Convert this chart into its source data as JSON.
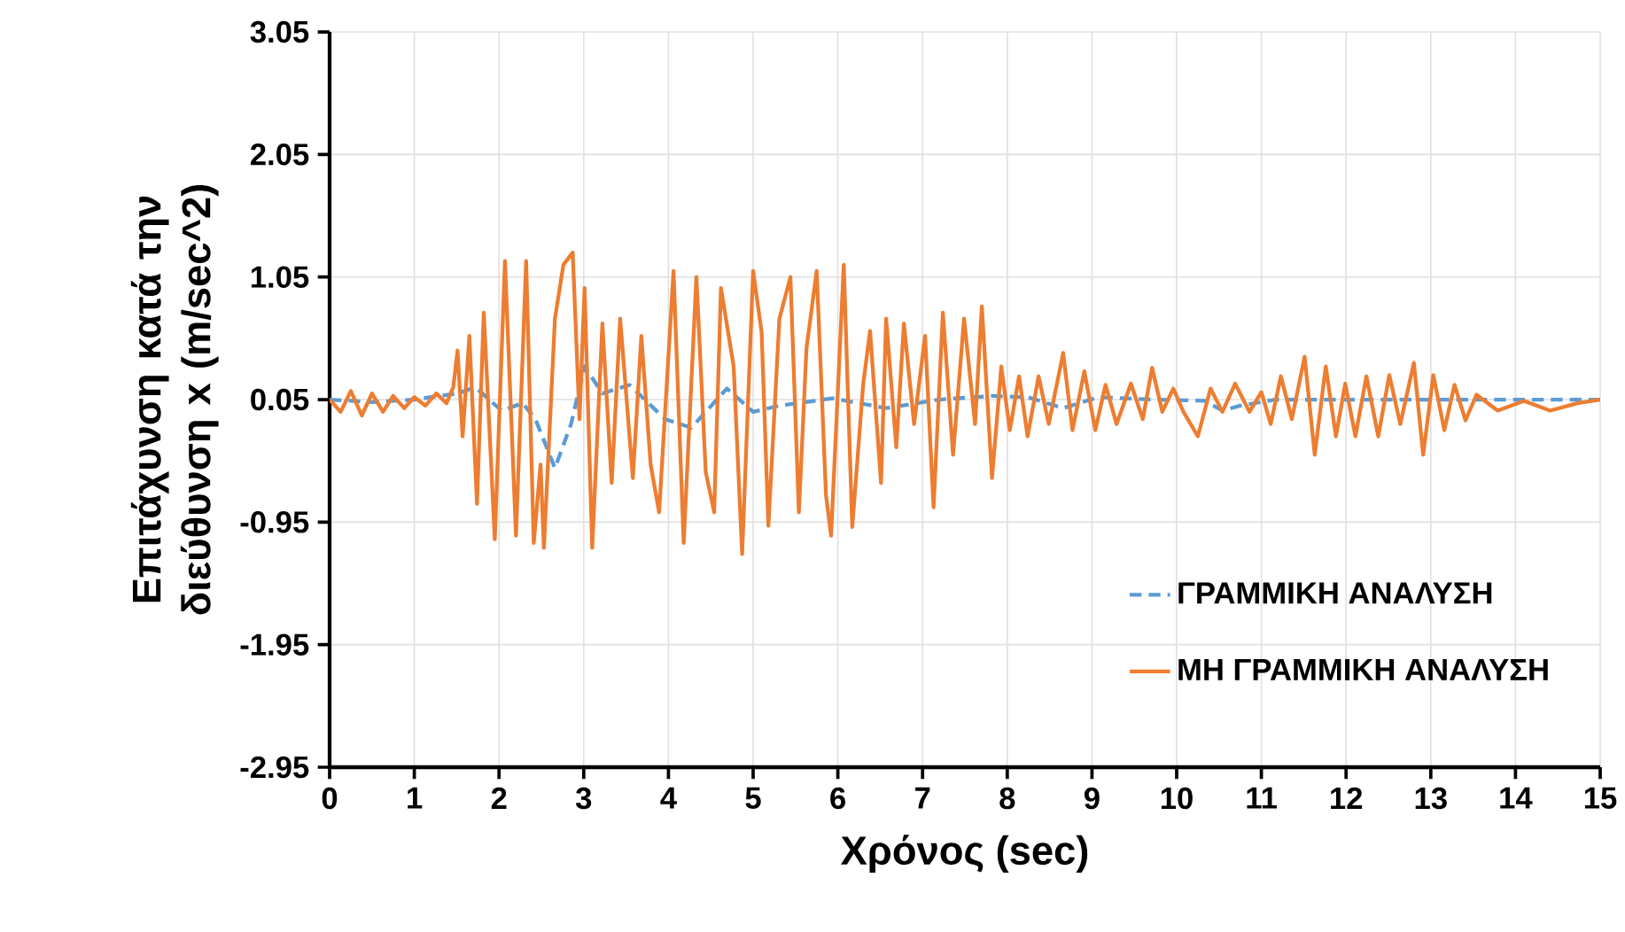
{
  "chart_data": {
    "type": "line",
    "xlabel": "Χρόνος (sec)",
    "ylabel": "Επιτάχυνση κατά την διεύθυνση x (m/sec^2)",
    "xlim": [
      0,
      15
    ],
    "xticks": [
      0,
      1,
      2,
      3,
      4,
      5,
      6,
      7,
      8,
      9,
      10,
      11,
      12,
      13,
      14,
      15
    ],
    "ylim": [
      -2.95,
      3.05
    ],
    "yticks": [
      -2.95,
      -1.95,
      -0.95,
      0.05,
      1.05,
      2.05,
      3.05
    ],
    "grid": true,
    "legend": "bottom right",
    "series": [
      {
        "name": "ΓΡΑΜΜΙΚΗ ΑΝΑΛΥΣΗ",
        "color": "#5b9bd5",
        "line_style": "dashed",
        "x": [
          0,
          0.5,
          1.0,
          1.51,
          1.72,
          2.03,
          2.28,
          2.43,
          2.66,
          2.85,
          3.01,
          3.22,
          3.54,
          3.96,
          4.27,
          4.69,
          5.0,
          5.31,
          5.94,
          6.57,
          7.2,
          7.82,
          8.24,
          8.66,
          9.08,
          9.71,
          10.33,
          10.54,
          10.75,
          11.17,
          12,
          13,
          14,
          15
        ],
        "values": [
          0.05,
          0.03,
          0.05,
          0.1,
          0.15,
          -0.04,
          0.02,
          -0.11,
          -0.51,
          -0.15,
          0.32,
          0.1,
          0.17,
          -0.11,
          -0.18,
          0.14,
          -0.05,
          0.0,
          0.06,
          -0.02,
          0.05,
          0.08,
          0.07,
          -0.02,
          0.07,
          0.05,
          0.04,
          -0.04,
          0.0,
          0.05,
          0.05,
          0.05,
          0.05,
          0.05
        ]
      },
      {
        "name": "ΜΗ ΓΡΑΜΜΙΚΗ ΑΝΑΛΥΣΗ",
        "color": "#ed7d31",
        "line_style": "solid",
        "x": [
          0,
          0.13,
          0.25,
          0.38,
          0.5,
          0.63,
          0.75,
          0.88,
          1.0,
          1.13,
          1.26,
          1.38,
          1.46,
          1.51,
          1.57,
          1.65,
          1.74,
          1.82,
          1.95,
          2.07,
          2.2,
          2.32,
          2.41,
          2.49,
          2.53,
          2.66,
          2.76,
          2.87,
          2.95,
          3.01,
          3.1,
          3.22,
          3.33,
          3.43,
          3.58,
          3.68,
          3.79,
          3.89,
          4.06,
          4.18,
          4.33,
          4.44,
          4.54,
          4.62,
          4.77,
          4.87,
          5.0,
          5.1,
          5.18,
          5.31,
          5.44,
          5.54,
          5.63,
          5.75,
          5.86,
          5.92,
          6.07,
          6.17,
          6.3,
          6.38,
          6.51,
          6.57,
          6.69,
          6.78,
          6.9,
          7.03,
          7.13,
          7.24,
          7.36,
          7.49,
          7.62,
          7.7,
          7.82,
          7.93,
          8.03,
          8.14,
          8.24,
          8.37,
          8.49,
          8.66,
          8.77,
          8.91,
          9.04,
          9.16,
          9.29,
          9.46,
          9.6,
          9.71,
          9.83,
          9.96,
          10.08,
          10.25,
          10.4,
          10.54,
          10.69,
          10.86,
          11.0,
          11.11,
          11.23,
          11.36,
          11.51,
          11.63,
          11.76,
          11.88,
          11.99,
          12.11,
          12.24,
          12.38,
          12.51,
          12.64,
          12.8,
          12.91,
          13.03,
          13.16,
          13.28,
          13.41,
          13.54,
          13.79,
          14.1,
          14.41,
          14.73,
          15
        ],
        "values": [
          0.05,
          -0.05,
          0.12,
          -0.08,
          0.1,
          -0.05,
          0.08,
          -0.02,
          0.07,
          0.0,
          0.1,
          0.02,
          0.15,
          0.45,
          -0.25,
          0.57,
          -0.8,
          0.76,
          -1.09,
          1.18,
          -1.06,
          1.18,
          -1.12,
          -0.48,
          -1.16,
          0.71,
          1.15,
          1.25,
          -0.11,
          0.96,
          -1.16,
          0.67,
          -0.63,
          0.71,
          -0.59,
          0.57,
          -0.48,
          -0.87,
          1.1,
          -1.12,
          1.05,
          -0.54,
          -0.87,
          0.96,
          0.32,
          -1.21,
          1.1,
          0.6,
          -0.98,
          0.71,
          1.05,
          -0.87,
          0.47,
          1.1,
          -0.73,
          -1.06,
          1.15,
          -0.99,
          0.18,
          0.61,
          -0.63,
          0.71,
          -0.34,
          0.67,
          -0.15,
          0.57,
          -0.83,
          0.76,
          -0.4,
          0.71,
          -0.15,
          0.81,
          -0.59,
          0.32,
          -0.2,
          0.24,
          -0.25,
          0.24,
          -0.15,
          0.43,
          -0.2,
          0.28,
          -0.2,
          0.17,
          -0.15,
          0.18,
          -0.11,
          0.31,
          -0.05,
          0.14,
          -0.05,
          -0.25,
          0.14,
          -0.05,
          0.18,
          -0.05,
          0.11,
          -0.15,
          0.24,
          -0.11,
          0.4,
          -0.4,
          0.32,
          -0.25,
          0.18,
          -0.25,
          0.24,
          -0.25,
          0.25,
          -0.15,
          0.35,
          -0.4,
          0.25,
          -0.2,
          0.17,
          -0.12,
          0.09,
          -0.04,
          0.04,
          -0.04,
          0.02,
          0.05
        ]
      }
    ]
  }
}
